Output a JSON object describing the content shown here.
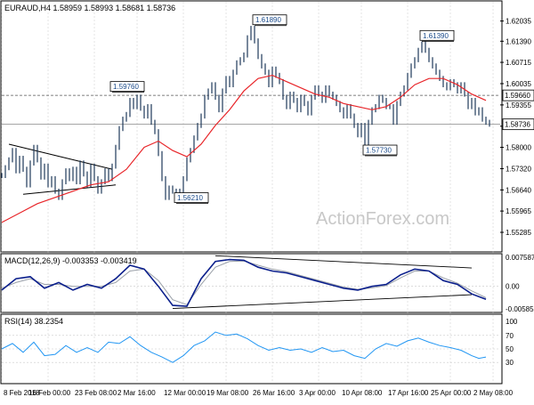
{
  "chart_data": {
    "type": "line",
    "price_panel": {
      "title": "EURAUD,H4  1.58959 1.58993 1.58681 1.58736",
      "ylim": [
        1.5466,
        1.6265
      ],
      "yticks": [
        "1.62035",
        "1.61390",
        "1.60715",
        "1.60035",
        "1.59355",
        "1.58675",
        "1.58000",
        "1.57320",
        "1.56640",
        "1.55965",
        "1.55285"
      ],
      "ytick_values": [
        1.62035,
        1.6139,
        1.60715,
        1.60035,
        1.59355,
        1.58675,
        1.58,
        1.5732,
        1.5664,
        1.55965,
        1.55285
      ],
      "current_price_label": "1.58736",
      "current_price": 1.58736,
      "level_label": "1.59660",
      "level": 1.5966,
      "watermark": "ActionForex.com",
      "annotations": [
        {
          "text": "1.59760",
          "x": 31,
          "y": 1.5976
        },
        {
          "text": "1.61890",
          "x": 71,
          "y": 1.6189
        },
        {
          "text": "1.56210",
          "x": 49,
          "y": 1.5621
        },
        {
          "text": "1.57730",
          "x": 102,
          "y": 1.5773
        },
        {
          "text": "1.61390",
          "x": 118,
          "y": 1.6139
        }
      ],
      "price_series": [
        [
          0,
          1.571
        ],
        [
          1,
          1.5735
        ],
        [
          2,
          1.576
        ],
        [
          3,
          1.579
        ],
        [
          4,
          1.5725
        ],
        [
          5,
          1.5765
        ],
        [
          6,
          1.573
        ],
        [
          7,
          1.568
        ],
        [
          8,
          1.575
        ],
        [
          9,
          1.58
        ],
        [
          10,
          1.576
        ],
        [
          11,
          1.5705
        ],
        [
          12,
          1.574
        ],
        [
          13,
          1.568
        ],
        [
          14,
          1.57
        ],
        [
          15,
          1.566
        ],
        [
          16,
          1.564
        ],
        [
          17,
          1.569
        ],
        [
          18,
          1.5725
        ],
        [
          19,
          1.57
        ],
        [
          20,
          1.573
        ],
        [
          21,
          1.569
        ],
        [
          22,
          1.575
        ],
        [
          23,
          1.5715
        ],
        [
          24,
          1.568
        ],
        [
          25,
          1.574
        ],
        [
          26,
          1.57
        ],
        [
          27,
          1.566
        ],
        [
          28,
          1.569
        ],
        [
          29,
          1.5725
        ],
        [
          30,
          1.57
        ],
        [
          31,
          1.574
        ],
        [
          32,
          1.58
        ],
        [
          33,
          1.586
        ],
        [
          34,
          1.589
        ],
        [
          35,
          1.5905
        ],
        [
          36,
          1.595
        ],
        [
          37,
          1.593
        ],
        [
          38,
          1.596
        ],
        [
          39,
          1.5925
        ],
        [
          40,
          1.59
        ],
        [
          41,
          1.593
        ],
        [
          42,
          1.588
        ],
        [
          43,
          1.585
        ],
        [
          44,
          1.578
        ],
        [
          45,
          1.57
        ],
        [
          46,
          1.564
        ],
        [
          47,
          1.567
        ],
        [
          48,
          1.566
        ],
        [
          49,
          1.564
        ],
        [
          50,
          1.566
        ],
        [
          51,
          1.57
        ],
        [
          52,
          1.576
        ],
        [
          53,
          1.579
        ],
        [
          54,
          1.583
        ],
        [
          55,
          1.587
        ],
        [
          56,
          1.59
        ],
        [
          57,
          1.596
        ],
        [
          58,
          1.598
        ],
        [
          59,
          1.6
        ],
        [
          60,
          1.596
        ],
        [
          61,
          1.592
        ],
        [
          62,
          1.598
        ],
        [
          63,
          1.602
        ],
        [
          64,
          1.6
        ],
        [
          65,
          1.604
        ],
        [
          66,
          1.607
        ],
        [
          67,
          1.608
        ],
        [
          68,
          1.6095
        ],
        [
          69,
          1.615
        ],
        [
          70,
          1.618
        ],
        [
          71,
          1.614
        ],
        [
          72,
          1.609
        ],
        [
          73,
          1.606
        ],
        [
          74,
          1.604
        ],
        [
          75,
          1.6
        ],
        [
          76,
          1.605
        ],
        [
          77,
          1.603
        ],
        [
          78,
          1.601
        ],
        [
          79,
          1.596
        ],
        [
          80,
          1.593
        ],
        [
          81,
          1.597
        ],
        [
          82,
          1.595
        ],
        [
          83,
          1.592
        ],
        [
          84,
          1.596
        ],
        [
          85,
          1.594
        ],
        [
          86,
          1.591
        ],
        [
          87,
          1.596
        ],
        [
          88,
          1.599
        ],
        [
          89,
          1.597
        ],
        [
          90,
          1.595
        ],
        [
          91,
          1.599
        ],
        [
          92,
          1.597
        ],
        [
          93,
          1.596
        ],
        [
          94,
          1.594
        ],
        [
          95,
          1.592
        ],
        [
          96,
          1.59
        ],
        [
          97,
          1.593
        ],
        [
          98,
          1.59
        ],
        [
          99,
          1.587
        ],
        [
          100,
          1.584
        ],
        [
          101,
          1.587
        ],
        [
          102,
          1.581
        ],
        [
          103,
          1.588
        ],
        [
          104,
          1.592
        ],
        [
          105,
          1.593
        ],
        [
          106,
          1.596
        ],
        [
          107,
          1.595
        ],
        [
          108,
          1.593
        ],
        [
          109,
          1.593
        ],
        [
          110,
          1.588
        ],
        [
          111,
          1.594
        ],
        [
          112,
          1.597
        ],
        [
          113,
          1.599
        ],
        [
          114,
          1.603
        ],
        [
          115,
          1.606
        ],
        [
          116,
          1.608
        ],
        [
          117,
          1.611
        ],
        [
          118,
          1.613
        ],
        [
          119,
          1.611
        ],
        [
          120,
          1.608
        ],
        [
          121,
          1.606
        ],
        [
          122,
          1.604
        ],
        [
          123,
          1.602
        ],
        [
          124,
          1.6
        ],
        [
          125,
          1.599
        ],
        [
          126,
          1.601
        ],
        [
          127,
          1.6
        ],
        [
          128,
          1.598
        ],
        [
          129,
          1.6
        ],
        [
          130,
          1.597
        ],
        [
          131,
          1.593
        ],
        [
          132,
          1.595
        ],
        [
          133,
          1.591
        ],
        [
          134,
          1.592
        ],
        [
          135,
          1.589
        ],
        [
          136,
          1.588
        ],
        [
          137,
          1.5874
        ]
      ],
      "ma_series": [
        [
          0,
          1.556
        ],
        [
          5,
          1.559
        ],
        [
          10,
          1.562
        ],
        [
          15,
          1.564
        ],
        [
          20,
          1.566
        ],
        [
          25,
          1.568
        ],
        [
          30,
          1.569
        ],
        [
          35,
          1.573
        ],
        [
          40,
          1.58
        ],
        [
          44,
          1.582
        ],
        [
          48,
          1.579
        ],
        [
          52,
          1.577
        ],
        [
          56,
          1.581
        ],
        [
          60,
          1.587
        ],
        [
          64,
          1.592
        ],
        [
          68,
          1.598
        ],
        [
          72,
          1.602
        ],
        [
          76,
          1.603
        ],
        [
          80,
          1.601
        ],
        [
          84,
          1.599
        ],
        [
          88,
          1.597
        ],
        [
          92,
          1.596
        ],
        [
          96,
          1.594
        ],
        [
          100,
          1.593
        ],
        [
          104,
          1.592
        ],
        [
          108,
          1.593
        ],
        [
          112,
          1.596
        ],
        [
          116,
          1.6
        ],
        [
          120,
          1.602
        ],
        [
          124,
          1.602
        ],
        [
          128,
          1.6
        ],
        [
          132,
          1.597
        ],
        [
          136,
          1.595
        ]
      ],
      "trendlines": [
        {
          "from": [
            2,
            1.581
          ],
          "to": [
            31,
            1.573
          ]
        },
        {
          "from": [
            6,
            1.565
          ],
          "to": [
            32,
            1.568
          ]
        }
      ]
    },
    "macd_panel": {
      "title": "MACD(12,26,9) -0.003353 -0.003419",
      "ylim": [
        -0.0066,
        0.0083
      ],
      "yticks": [
        "0.007587",
        "0.00",
        "-0.005853"
      ],
      "ytick_values": [
        0.007587,
        0.0,
        -0.005853
      ],
      "macd_series": [
        [
          0,
          -0.001
        ],
        [
          4,
          0.002
        ],
        [
          8,
          0.0025
        ],
        [
          12,
          -0.0005
        ],
        [
          16,
          0.001
        ],
        [
          20,
          -0.001
        ],
        [
          24,
          0.0005
        ],
        [
          28,
          -0.0005
        ],
        [
          32,
          0.002
        ],
        [
          36,
          0.0055
        ],
        [
          40,
          0.0045
        ],
        [
          44,
          0.0
        ],
        [
          48,
          -0.005
        ],
        [
          52,
          -0.0052
        ],
        [
          56,
          0.002
        ],
        [
          60,
          0.0065
        ],
        [
          64,
          0.007
        ],
        [
          68,
          0.0068
        ],
        [
          72,
          0.005
        ],
        [
          76,
          0.004
        ],
        [
          80,
          0.0035
        ],
        [
          84,
          0.0025
        ],
        [
          88,
          0.0015
        ],
        [
          92,
          0.0005
        ],
        [
          96,
          -0.0005
        ],
        [
          100,
          -0.001
        ],
        [
          104,
          0.0
        ],
        [
          108,
          0.0005
        ],
        [
          112,
          0.003
        ],
        [
          116,
          0.0045
        ],
        [
          120,
          0.004
        ],
        [
          124,
          0.0015
        ],
        [
          128,
          0.0005
        ],
        [
          132,
          -0.002
        ],
        [
          136,
          -0.0034
        ]
      ],
      "signal_series": [
        [
          0,
          -0.0005
        ],
        [
          4,
          0.001
        ],
        [
          8,
          0.002
        ],
        [
          12,
          0.0005
        ],
        [
          16,
          0.0005
        ],
        [
          20,
          0.0
        ],
        [
          24,
          0.0
        ],
        [
          28,
          0.0
        ],
        [
          32,
          0.001
        ],
        [
          36,
          0.004
        ],
        [
          40,
          0.0045
        ],
        [
          44,
          0.0015
        ],
        [
          48,
          -0.0035
        ],
        [
          52,
          -0.0048
        ],
        [
          56,
          0.0005
        ],
        [
          60,
          0.005
        ],
        [
          64,
          0.0065
        ],
        [
          68,
          0.0066
        ],
        [
          72,
          0.0055
        ],
        [
          76,
          0.0045
        ],
        [
          80,
          0.0038
        ],
        [
          84,
          0.0028
        ],
        [
          88,
          0.0018
        ],
        [
          92,
          0.0008
        ],
        [
          96,
          -0.0002
        ],
        [
          100,
          -0.0008
        ],
        [
          104,
          -0.0004
        ],
        [
          108,
          0.0002
        ],
        [
          112,
          0.0022
        ],
        [
          116,
          0.004
        ],
        [
          120,
          0.004
        ],
        [
          124,
          0.0022
        ],
        [
          128,
          0.0008
        ],
        [
          132,
          -0.0012
        ],
        [
          136,
          -0.003
        ]
      ],
      "trendlines": [
        {
          "from": [
            60,
            0.008
          ],
          "to": [
            132,
            0.0048
          ]
        },
        {
          "from": [
            48,
            -0.0058
          ],
          "to": [
            132,
            -0.0022
          ]
        }
      ]
    },
    "rsi_panel": {
      "title": "RSI(14) 38.2354",
      "ylim": [
        0,
        100
      ],
      "yticks": [
        "70",
        "50",
        "30"
      ],
      "ytick_values": [
        70,
        50,
        30
      ],
      "extra_tick": "100",
      "rsi_series": [
        [
          0,
          50
        ],
        [
          3,
          58
        ],
        [
          6,
          45
        ],
        [
          9,
          60
        ],
        [
          12,
          40
        ],
        [
          15,
          42
        ],
        [
          18,
          55
        ],
        [
          21,
          45
        ],
        [
          24,
          52
        ],
        [
          27,
          45
        ],
        [
          30,
          60
        ],
        [
          33,
          58
        ],
        [
          36,
          68
        ],
        [
          39,
          55
        ],
        [
          42,
          45
        ],
        [
          45,
          38
        ],
        [
          48,
          30
        ],
        [
          51,
          40
        ],
        [
          54,
          55
        ],
        [
          57,
          62
        ],
        [
          60,
          75
        ],
        [
          63,
          70
        ],
        [
          66,
          72
        ],
        [
          69,
          65
        ],
        [
          72,
          55
        ],
        [
          75,
          48
        ],
        [
          78,
          52
        ],
        [
          81,
          48
        ],
        [
          84,
          50
        ],
        [
          87,
          45
        ],
        [
          90,
          52
        ],
        [
          93,
          46
        ],
        [
          96,
          48
        ],
        [
          99,
          40
        ],
        [
          102,
          36
        ],
        [
          105,
          50
        ],
        [
          108,
          58
        ],
        [
          111,
          54
        ],
        [
          114,
          62
        ],
        [
          117,
          66
        ],
        [
          120,
          60
        ],
        [
          123,
          55
        ],
        [
          126,
          52
        ],
        [
          129,
          48
        ],
        [
          132,
          40
        ],
        [
          134,
          36
        ],
        [
          136,
          38
        ]
      ]
    },
    "x_axis": {
      "tick_labels": [
        "8 Feb 2018",
        "16 Feb 00:00",
        "23 Feb 08:00",
        "2 Mar 16:00",
        "12 Mar 00:00",
        "19 Mar 08:00",
        "26 Mar 16:00",
        "3 Apr 00:00",
        "10 Apr 08:00",
        "17 Apr 16:00",
        "25 Apr 00:00",
        "2 May 08:00"
      ],
      "tick_positions": [
        0,
        13,
        26,
        38,
        51,
        63,
        76,
        89,
        101,
        114,
        126,
        138
      ]
    }
  },
  "colors": {
    "price": "#1f3a5a",
    "ma": "#e8262a",
    "macd": "#0b1f8c",
    "signal": "#9aa0a8",
    "rsi": "#2196f3",
    "grid": "#c8c8c8",
    "level_line": "#555555"
  }
}
